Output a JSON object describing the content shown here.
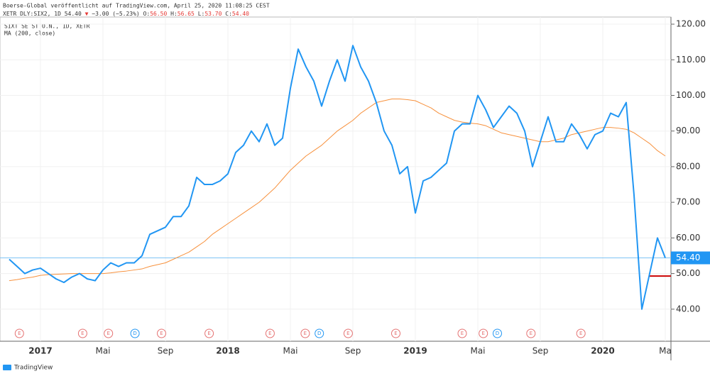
{
  "header": {
    "line1": "Boerse-Global veröffentlicht auf TradingView.com, April 25, 2020 11:08:25 CEST",
    "symbol": "XETR_DLY:SIX2, 1D",
    "last": "54.40",
    "arrow": "▼",
    "change": "−3.00 (−5.23%)",
    "o_label": "O:",
    "o": "56.50",
    "h_label": "H:",
    "h": "56.65",
    "l_label": "L:",
    "l": "53.70",
    "c_label": "C:",
    "c": "54.40"
  },
  "footer": {
    "brand": "TradingView"
  },
  "chart_data": {
    "type": "line",
    "legend": [
      "SIXT SE ST O.N., 1D, XETR",
      "MA (200, close)"
    ],
    "categories": [
      null,
      null,
      null,
      null,
      "2017",
      null,
      null,
      null,
      null,
      null,
      null,
      null,
      "Mai",
      null,
      null,
      null,
      null,
      null,
      null,
      null,
      "Sep",
      null,
      null,
      null,
      null,
      null,
      null,
      null,
      "2018",
      null,
      null,
      null,
      null,
      null,
      null,
      null,
      "Mai",
      null,
      null,
      null,
      null,
      null,
      null,
      null,
      "Sep",
      null,
      null,
      null,
      null,
      null,
      null,
      null,
      "2019",
      null,
      null,
      null,
      null,
      null,
      null,
      null,
      "Mai",
      null,
      null,
      null,
      null,
      null,
      null,
      null,
      "Sep",
      null,
      null,
      null,
      null,
      null,
      null,
      null,
      "2020",
      null,
      null,
      null,
      null,
      null,
      null,
      null,
      "Ma"
    ],
    "series": [
      {
        "name": "SIXT SE ST O.N., 1D, XETR",
        "color": "#2196f3",
        "values": [
          54,
          52,
          50,
          51,
          51.5,
          50,
          48.5,
          47.5,
          49,
          50,
          48.5,
          48,
          51,
          53,
          52,
          53,
          53,
          55,
          61,
          62,
          63,
          66,
          66,
          69,
          77,
          75,
          75,
          76,
          78,
          84,
          86,
          90,
          87,
          92,
          86,
          88,
          102,
          113,
          108,
          104,
          97,
          104,
          110,
          104,
          114,
          108,
          104,
          98,
          90,
          86,
          78,
          80,
          67,
          76,
          77,
          79,
          81,
          90,
          92,
          92,
          100,
          96,
          91,
          94,
          97,
          95,
          90,
          80,
          87,
          94,
          87,
          87,
          92,
          89,
          85,
          89,
          90,
          95,
          94,
          98,
          72,
          40,
          50,
          60,
          54.4
        ]
      },
      {
        "name": "MA (200, close)",
        "color": "#f7913d",
        "values": [
          48,
          48.3,
          48.7,
          49,
          49.5,
          49.7,
          49.8,
          49.9,
          50,
          50,
          50,
          50,
          50,
          50.2,
          50.5,
          50.7,
          51,
          51.3,
          52,
          52.5,
          53,
          54,
          55,
          56,
          57.5,
          59,
          61,
          62.5,
          64,
          65.5,
          67,
          68.5,
          70,
          72,
          74,
          76.5,
          79,
          81,
          83,
          84.5,
          86,
          88,
          90,
          91.5,
          93,
          95,
          96.5,
          98,
          98.5,
          99,
          99,
          98.8,
          98.5,
          97.5,
          96.5,
          95,
          94,
          93,
          92.5,
          92.2,
          92,
          91.5,
          90.5,
          89.5,
          89,
          88.5,
          88,
          87.5,
          87,
          87,
          87.5,
          88,
          89,
          89.5,
          90,
          90.5,
          91,
          91,
          90.8,
          90.5,
          89.5,
          88,
          86.5,
          84.5,
          83
        ]
      }
    ],
    "price_label": {
      "value": 54.4,
      "label": "54.40"
    },
    "red_level": 49.3,
    "events": [
      {
        "label": "E",
        "at": 1.3
      },
      {
        "label": "E",
        "at": 9.4
      },
      {
        "label": "E",
        "at": 12.7
      },
      {
        "label": "D",
        "at": 16.1
      },
      {
        "label": "E",
        "at": 19.5
      },
      {
        "label": "E",
        "at": 25.6
      },
      {
        "label": "E",
        "at": 33.4
      },
      {
        "label": "E",
        "at": 37.9
      },
      {
        "label": "D",
        "at": 39.7
      },
      {
        "label": "E",
        "at": 43.4
      },
      {
        "label": "E",
        "at": 49.5
      },
      {
        "label": "E",
        "at": 58
      },
      {
        "label": "E",
        "at": 60.7
      },
      {
        "label": "D",
        "at": 62.5
      },
      {
        "label": "E",
        "at": 66.8
      },
      {
        "label": "E",
        "at": 73.2
      }
    ],
    "ylim": [
      31,
      122
    ],
    "yticks": [
      {
        "value": 40,
        "label": "40.00"
      },
      {
        "value": 50,
        "label": "50.00"
      },
      {
        "value": 60,
        "label": "60.00"
      },
      {
        "value": 70,
        "label": "70.00"
      },
      {
        "value": 80,
        "label": "80.00"
      },
      {
        "value": 90,
        "label": "90.00"
      },
      {
        "value": 100,
        "label": "100.00"
      },
      {
        "value": 110,
        "label": "110.00"
      },
      {
        "value": 120,
        "label": "120.00"
      }
    ],
    "grid": true
  }
}
